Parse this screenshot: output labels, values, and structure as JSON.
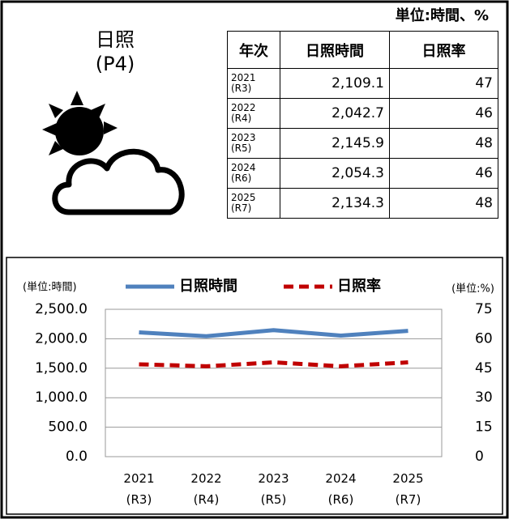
{
  "unit_note": "単位:時間、%",
  "header": {
    "title": "日照",
    "page": "(P4)"
  },
  "table": {
    "columns": [
      "年次",
      "日照時間",
      "日照率"
    ],
    "rows": [
      [
        "2021\n(R3)",
        "2,109.1",
        47
      ],
      [
        "2022\n(R4)",
        "2,042.7",
        46
      ],
      [
        "2023\n(R5)",
        "2,145.9",
        48
      ],
      [
        "2024\n(R6)",
        "2,054.3",
        46
      ],
      [
        "2025\n(R7)",
        "2,134.3",
        48
      ]
    ]
  },
  "chart_data": {
    "type": "line",
    "y_label": "(単位:時間)",
    "y2_label": "(単位:%)",
    "categories": [
      "2021\n(R3)",
      "2022\n(R4)",
      "2023\n(R5)",
      "2024\n(R6)",
      "2025\n(R7)"
    ],
    "series": [
      {
        "name": "日照時間",
        "color": "#4f81bd",
        "values": [
          2109.1,
          2042.7,
          2145.9,
          2054.3,
          2134.3
        ]
      },
      {
        "name": "日照率",
        "color": "#c00000",
        "axis": "y2",
        "dashed": true,
        "values": [
          47,
          46,
          48,
          46,
          48
        ]
      }
    ],
    "ylim": [
      0,
      2500
    ],
    "yticks": [
      {
        "value": 0,
        "label": "0.0"
      },
      {
        "value": 500,
        "label": "500.0"
      },
      {
        "value": 1000,
        "label": "1,000.0"
      },
      {
        "value": 1500,
        "label": "1,500.0"
      },
      {
        "value": 2000,
        "label": "2,000.0"
      },
      {
        "value": 2500,
        "label": "2,500.0"
      }
    ],
    "y2lim": [
      0,
      75
    ],
    "y2ticks": [
      0,
      15,
      30,
      45,
      60,
      75
    ],
    "grid": true
  }
}
